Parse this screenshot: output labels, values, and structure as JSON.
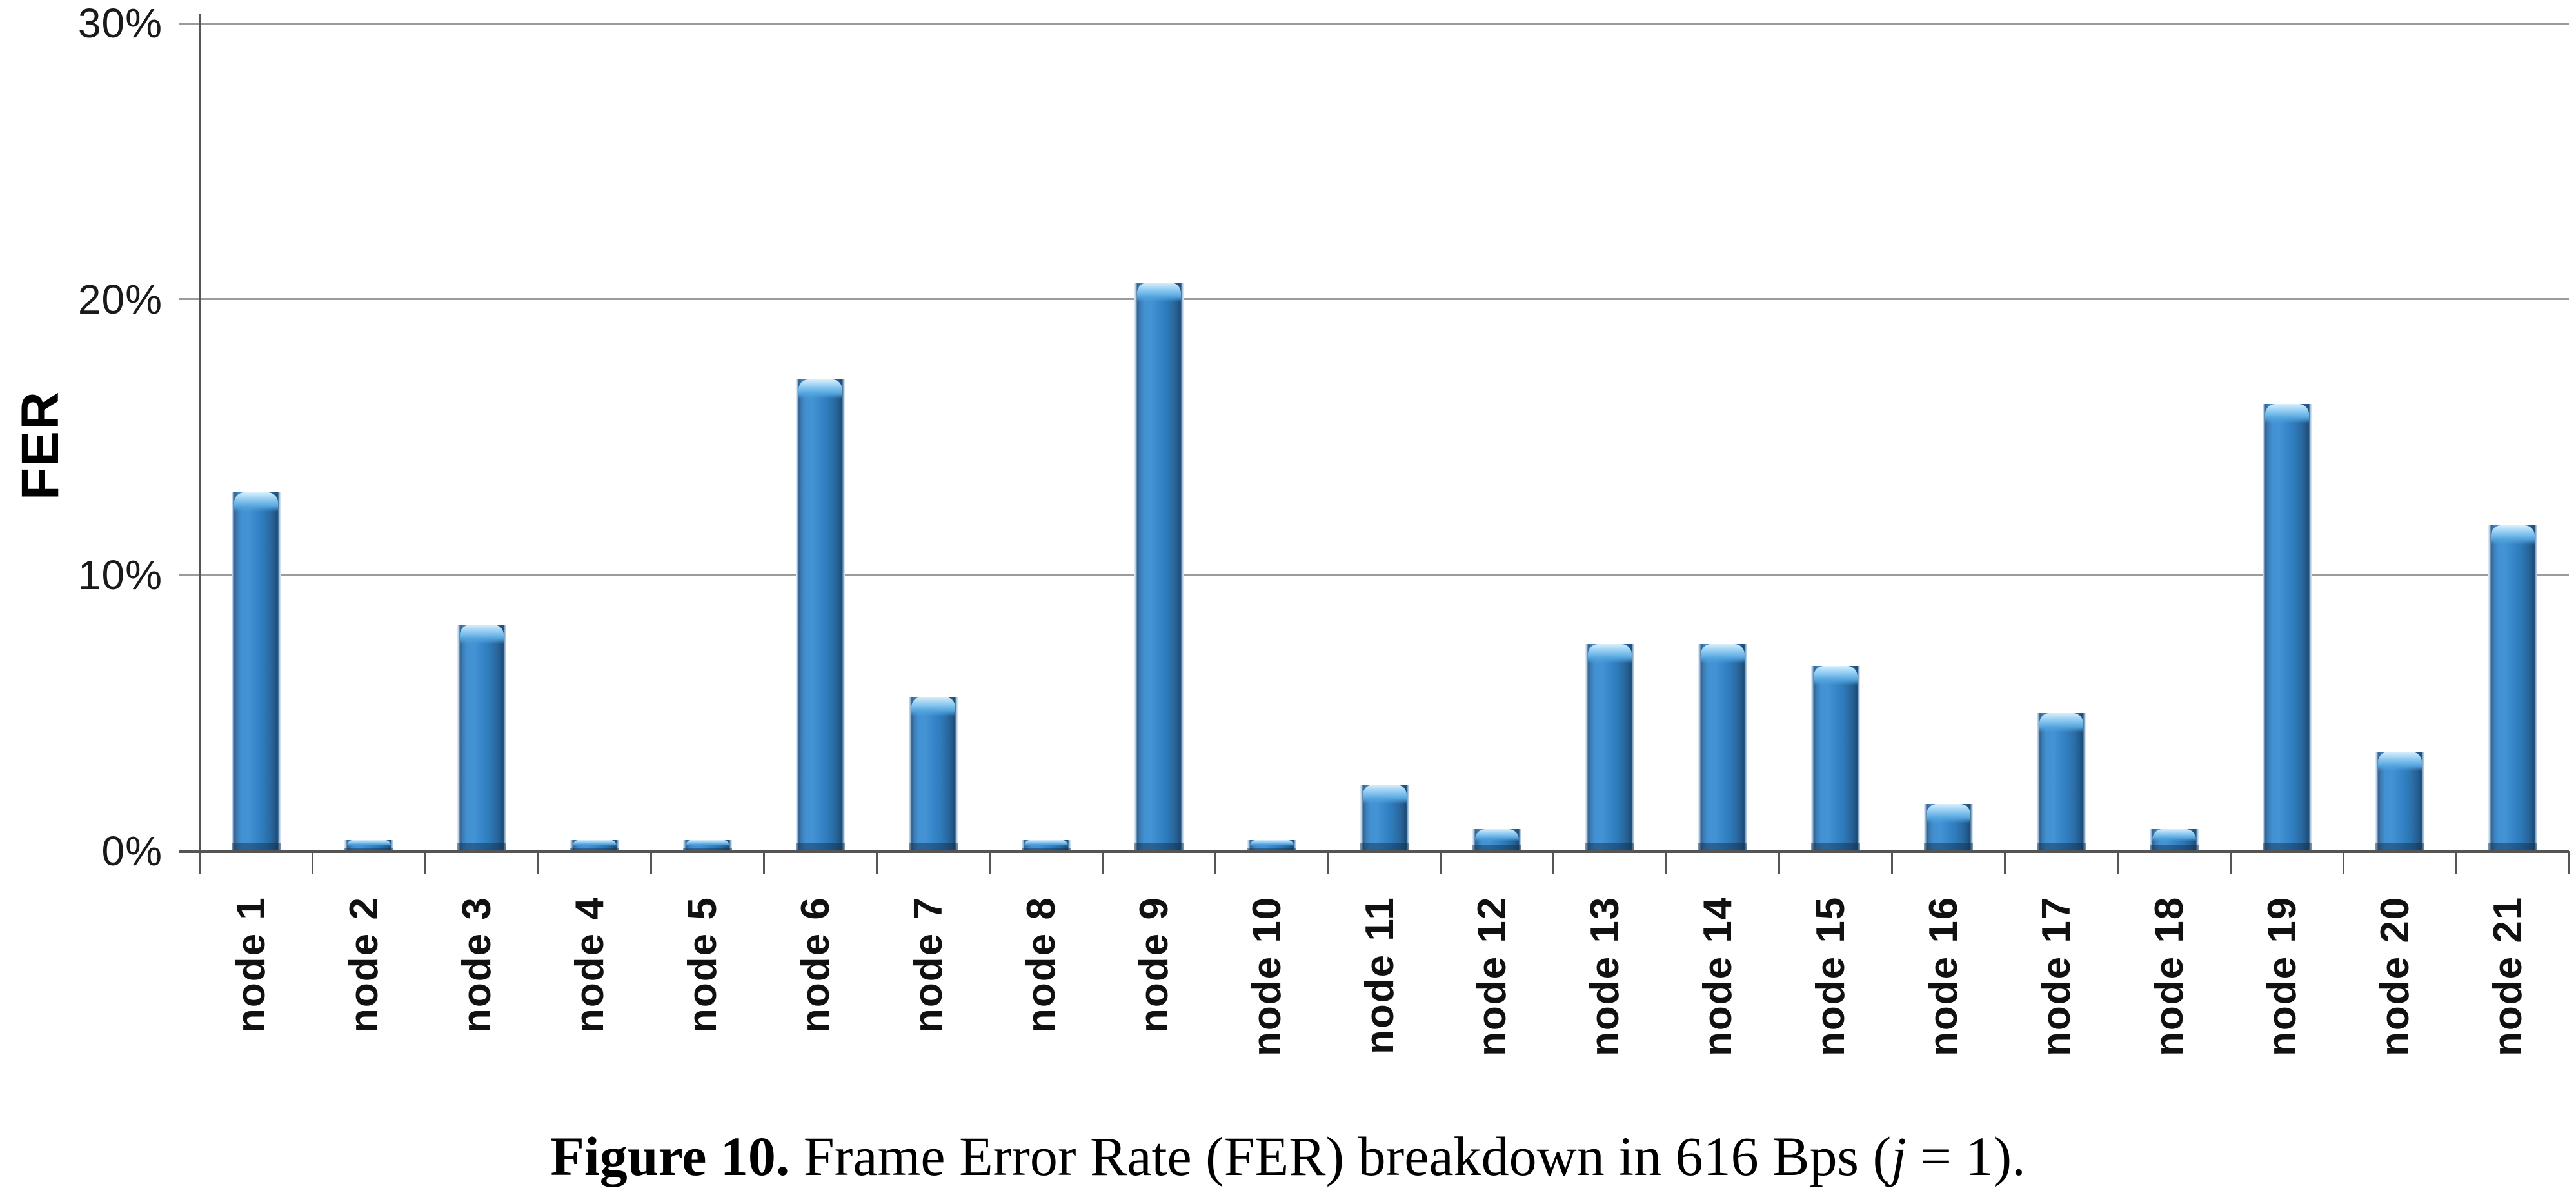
{
  "figure": {
    "caption": {
      "bold": "Figure 10.",
      "mid": " Frame Error Rate (FER) breakdown in 616 Bps (",
      "var": "j",
      "end": " = 1)."
    }
  },
  "chart_data": {
    "type": "bar",
    "title": "",
    "xlabel": "",
    "ylabel": "FER",
    "ylim": [
      0,
      30
    ],
    "grid": true,
    "legend": null,
    "y_ticks": [
      {
        "value": 30,
        "label": "30%"
      },
      {
        "value": 20,
        "label": "20%"
      },
      {
        "value": 10,
        "label": "10%"
      },
      {
        "value": 0,
        "label": "0%"
      }
    ],
    "categories": [
      "node 1",
      "node 2",
      "node 3",
      "node 4",
      "node 5",
      "node 6",
      "node 7",
      "node 8",
      "node 9",
      "node 10",
      "node 11",
      "node 12",
      "node 13",
      "node 14",
      "node 15",
      "node 16",
      "node 17",
      "node 18",
      "node 19",
      "node 20",
      "node 21"
    ],
    "values": [
      13.0,
      0.4,
      8.2,
      0.4,
      0.4,
      17.1,
      5.6,
      0.4,
      20.6,
      0.4,
      2.4,
      0.8,
      7.5,
      7.5,
      6.7,
      1.7,
      5.0,
      0.8,
      16.2,
      3.6,
      11.8
    ],
    "value_unit": "%",
    "bar_color_center": "#3585c8",
    "bar_color_edge": "#1d4a74",
    "bar_cap_color": "#8ecaf1",
    "gridline_color": "#9b9b9b",
    "axis_color": "#555555"
  }
}
